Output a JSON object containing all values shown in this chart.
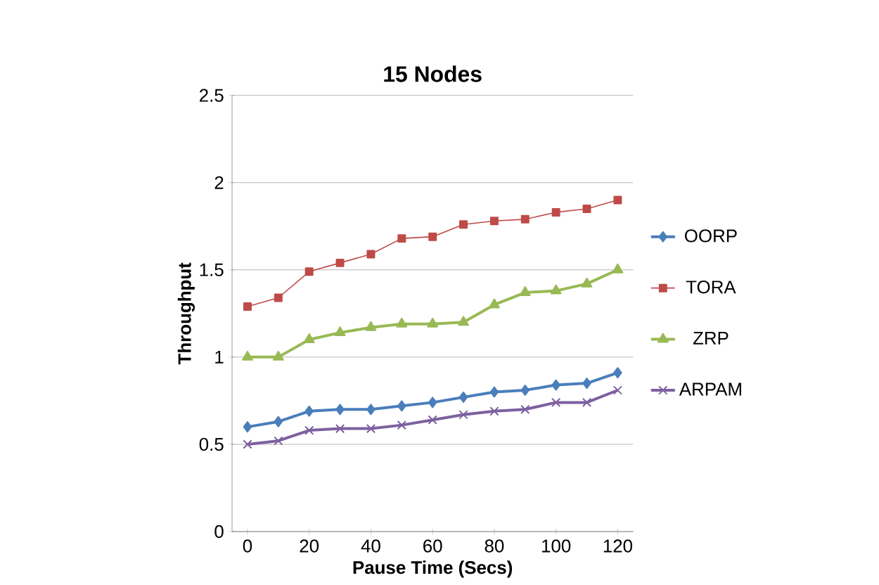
{
  "chart_data": {
    "type": "line",
    "title": "15 Nodes",
    "xlabel": "Pause Time (Secs)",
    "ylabel": "Throughput",
    "x": [
      0,
      10,
      20,
      30,
      40,
      50,
      60,
      70,
      80,
      90,
      100,
      110,
      120
    ],
    "xlim": [
      -5,
      125
    ],
    "xticks": [
      0,
      20,
      40,
      60,
      80,
      100,
      120
    ],
    "ylim": [
      0,
      2.5
    ],
    "yticks": [
      0,
      0.5,
      1,
      1.5,
      2,
      2.5
    ],
    "grid": "y",
    "legend": "right",
    "series": [
      {
        "name": "OORP",
        "color": "#4a7ebb",
        "marker": "diamond",
        "values": [
          0.6,
          0.63,
          0.69,
          0.7,
          0.7,
          0.72,
          0.74,
          0.77,
          0.8,
          0.81,
          0.84,
          0.85,
          0.91
        ]
      },
      {
        "name": "TORA",
        "color": "#be4b48",
        "marker": "square",
        "values": [
          1.29,
          1.34,
          1.49,
          1.54,
          1.59,
          1.68,
          1.69,
          1.76,
          1.78,
          1.79,
          1.83,
          1.85,
          1.9
        ]
      },
      {
        "name": "ZRP",
        "color": "#98b954",
        "marker": "triangle",
        "values": [
          1.0,
          1.0,
          1.1,
          1.14,
          1.17,
          1.19,
          1.19,
          1.2,
          1.3,
          1.37,
          1.38,
          1.42,
          1.5
        ]
      },
      {
        "name": "ARPAM",
        "color": "#7d60a0",
        "marker": "cross",
        "values": [
          0.5,
          0.52,
          0.58,
          0.59,
          0.59,
          0.61,
          0.64,
          0.67,
          0.69,
          0.7,
          0.74,
          0.74,
          0.81
        ]
      }
    ]
  }
}
